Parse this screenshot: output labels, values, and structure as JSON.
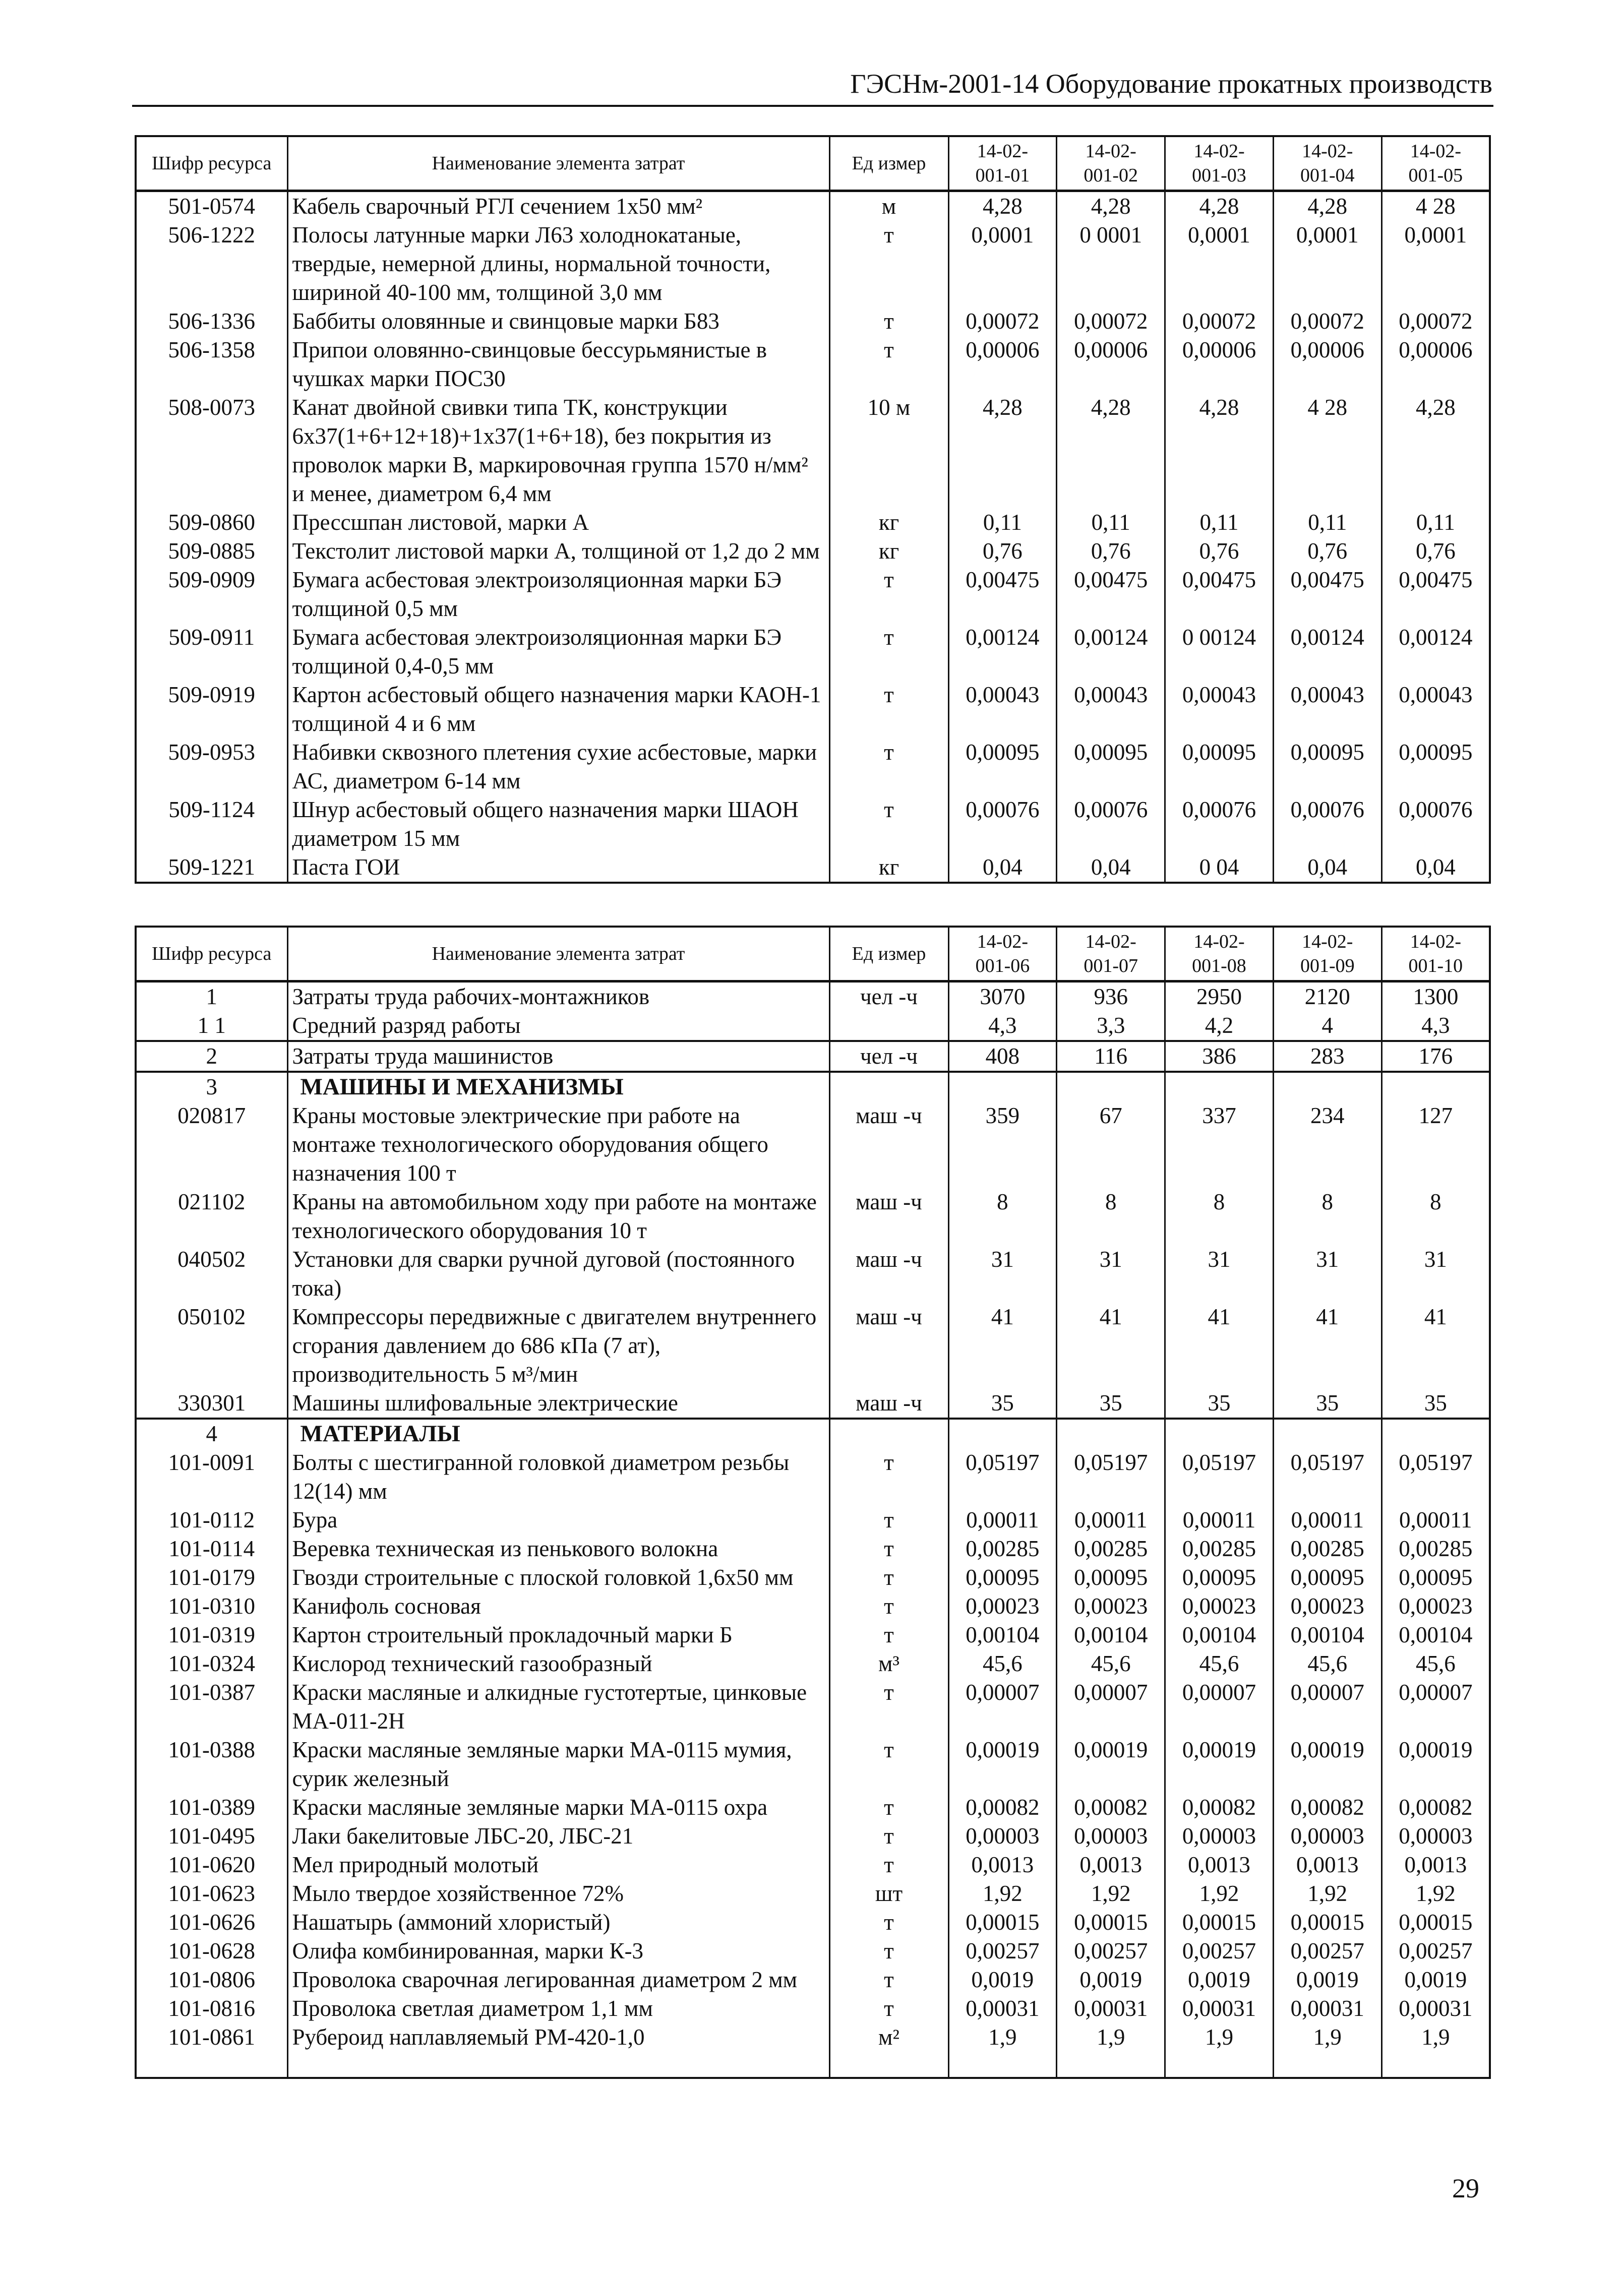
{
  "header": {
    "title": "ГЭСНм-2001-14 Оборудование прокатных производств"
  },
  "page_number": "29",
  "tables": [
    {
      "columns": [
        "Шифр ресурса",
        "Наименование элемента затрат",
        "Ед измер",
        "14-02-001-01",
        "14-02-001-02",
        "14-02-001-03",
        "14-02-001-04",
        "14-02-001-05"
      ],
      "rows": [
        {
          "code": "501-0574",
          "name": "Кабель сварочный РГЛ сечением 1х50 мм²",
          "unit": "м",
          "values": [
            "4,28",
            "4,28",
            "4,28",
            "4,28",
            "4 28"
          ]
        },
        {
          "code": "506-1222",
          "name": "Полосы латунные марки Л63 холоднокатаные, твердые, немерной длины, нормальной точности, шириной 40-100 мм, толщиной 3,0 мм",
          "unit": "т",
          "values": [
            "0,0001",
            "0 0001",
            "0,0001",
            "0,0001",
            "0,0001"
          ]
        },
        {
          "code": "506-1336",
          "name": "Баббиты оловянные и свинцовые марки Б83",
          "unit": "т",
          "values": [
            "0,00072",
            "0,00072",
            "0,00072",
            "0,00072",
            "0,00072"
          ]
        },
        {
          "code": "506-1358",
          "name": "Припои оловянно-свинцовые бессурьмянистые в чушках марки ПОС30",
          "unit": "т",
          "values": [
            "0,00006",
            "0,00006",
            "0,00006",
            "0,00006",
            "0,00006"
          ]
        },
        {
          "code": "508-0073",
          "name": "Канат двойной свивки типа ТК, конструкции 6х37(1+6+12+18)+1х37(1+6+18), без покрытия из проволок марки В, маркировочная группа 1570 н/мм² и менее, диаметром 6,4 мм",
          "unit": "10 м",
          "values": [
            "4,28",
            "4,28",
            "4,28",
            "4 28",
            "4,28"
          ]
        },
        {
          "code": "509-0860",
          "name": "Прессшпан листовой, марки А",
          "unit": "кг",
          "values": [
            "0,11",
            "0,11",
            "0,11",
            "0,11",
            "0,11"
          ]
        },
        {
          "code": "509-0885",
          "name": "Текстолит листовой марки А, толщиной от 1,2 до 2 мм",
          "unit": "кг",
          "values": [
            "0,76",
            "0,76",
            "0,76",
            "0,76",
            "0,76"
          ]
        },
        {
          "code": "509-0909",
          "name": "Бумага асбестовая электроизоляционная марки БЭ толщиной 0,5 мм",
          "unit": "т",
          "values": [
            "0,00475",
            "0,00475",
            "0,00475",
            "0,00475",
            "0,00475"
          ]
        },
        {
          "code": "509-0911",
          "name": "Бумага асбестовая электроизоляционная марки БЭ толщиной 0,4-0,5 мм",
          "unit": "т",
          "values": [
            "0,00124",
            "0,00124",
            "0 00124",
            "0,00124",
            "0,00124"
          ]
        },
        {
          "code": "509-0919",
          "name": "Картон асбестовый общего назначения марки КАОН-1 толщиной 4 и 6 мм",
          "unit": "т",
          "values": [
            "0,00043",
            "0,00043",
            "0,00043",
            "0,00043",
            "0,00043"
          ]
        },
        {
          "code": "509-0953",
          "name": "Набивки сквозного плетения сухие асбестовые, марки АС, диаметром 6-14 мм",
          "unit": "т",
          "values": [
            "0,00095",
            "0,00095",
            "0,00095",
            "0,00095",
            "0,00095"
          ]
        },
        {
          "code": "509-1124",
          "name": "Шнур асбестовый общего назначения марки ШАОН диаметром 15 мм",
          "unit": "т",
          "values": [
            "0,00076",
            "0,00076",
            "0,00076",
            "0,00076",
            "0,00076"
          ]
        },
        {
          "code": "509-1221",
          "name": "Паста ГОИ",
          "unit": "кг",
          "values": [
            "0,04",
            "0,04",
            "0 04",
            "0,04",
            "0,04"
          ]
        }
      ]
    },
    {
      "columns": [
        "Шифр ресурса",
        "Наименование элемента затрат",
        "Ед измер",
        "14-02-001-06",
        "14-02-001-07",
        "14-02-001-08",
        "14-02-001-09",
        "14-02-001-10"
      ],
      "rows": [
        {
          "code": "1",
          "name": "Затраты труда рабочих-монтажников",
          "unit": "чел -ч",
          "values": [
            "3070",
            "936",
            "2950",
            "2120",
            "1300"
          ]
        },
        {
          "code": "1 1",
          "name": "Средний разряд работы",
          "unit": "",
          "values": [
            "4,3",
            "3,3",
            "4,2",
            "4",
            "4,3"
          ],
          "sep": true
        },
        {
          "code": "2",
          "name": "Затраты труда машинистов",
          "unit": "чел -ч",
          "values": [
            "408",
            "116",
            "386",
            "283",
            "176"
          ],
          "sep": true
        },
        {
          "code": "3",
          "name": "МАШИНЫ И МЕХАНИЗМЫ",
          "unit": "",
          "values": [
            "",
            "",
            "",
            "",
            ""
          ],
          "bold": true
        },
        {
          "code": "020817",
          "name": "Краны мостовые электрические при работе на монтаже технологического оборудования общего назначения 100 т",
          "unit": "маш -ч",
          "values": [
            "359",
            "67",
            "337",
            "234",
            "127"
          ]
        },
        {
          "code": "021102",
          "name": "Краны на автомобильном ходу при работе на монтаже технологического оборудования 10 т",
          "unit": "маш -ч",
          "values": [
            "8",
            "8",
            "8",
            "8",
            "8"
          ]
        },
        {
          "code": "040502",
          "name": "Установки для сварки ручной дуговой (постоянного тока)",
          "unit": "маш -ч",
          "values": [
            "31",
            "31",
            "31",
            "31",
            "31"
          ]
        },
        {
          "code": "050102",
          "name": "Компрессоры передвижные с двигателем внутреннего сгорания давлением до 686 кПа (7 ат), производительность 5 м³/мин",
          "unit": "маш -ч",
          "values": [
            "41",
            "41",
            "41",
            "41",
            "41"
          ]
        },
        {
          "code": "330301",
          "name": "Машины шлифовальные электрические",
          "unit": "маш -ч",
          "values": [
            "35",
            "35",
            "35",
            "35",
            "35"
          ],
          "sep": true
        },
        {
          "code": "4",
          "name": "МАТЕРИАЛЫ",
          "unit": "",
          "values": [
            "",
            "",
            "",
            "",
            ""
          ],
          "bold": true
        },
        {
          "code": "101-0091",
          "name": "Болты с шестигранной головкой диаметром резьбы 12(14) мм",
          "unit": "т",
          "values": [
            "0,05197",
            "0,05197",
            "0,05197",
            "0,05197",
            "0,05197"
          ]
        },
        {
          "code": "101-0112",
          "name": "Бура",
          "unit": "т",
          "values": [
            "0,00011",
            "0,00011",
            "0,00011",
            "0,00011",
            "0,00011"
          ]
        },
        {
          "code": "101-0114",
          "name": "Веревка техническая из пенькового волокна",
          "unit": "т",
          "values": [
            "0,00285",
            "0,00285",
            "0,00285",
            "0,00285",
            "0,00285"
          ]
        },
        {
          "code": "101-0179",
          "name": "Гвозди строительные с плоской головкой 1,6х50 мм",
          "unit": "т",
          "values": [
            "0,00095",
            "0,00095",
            "0,00095",
            "0,00095",
            "0,00095"
          ]
        },
        {
          "code": "101-0310",
          "name": "Канифоль сосновая",
          "unit": "т",
          "values": [
            "0,00023",
            "0,00023",
            "0,00023",
            "0,00023",
            "0,00023"
          ]
        },
        {
          "code": "101-0319",
          "name": "Картон строительный прокладочный марки Б",
          "unit": "т",
          "values": [
            "0,00104",
            "0,00104",
            "0,00104",
            "0,00104",
            "0,00104"
          ]
        },
        {
          "code": "101-0324",
          "name": "Кислород технический газообразный",
          "unit": "м³",
          "values": [
            "45,6",
            "45,6",
            "45,6",
            "45,6",
            "45,6"
          ]
        },
        {
          "code": "101-0387",
          "name": "Краски масляные и алкидные густотертые, цинковые МА-011-2Н",
          "unit": "т",
          "values": [
            "0,00007",
            "0,00007",
            "0,00007",
            "0,00007",
            "0,00007"
          ]
        },
        {
          "code": "101-0388",
          "name": "Краски масляные земляные марки МА-0115 мумия, сурик железный",
          "unit": "т",
          "values": [
            "0,00019",
            "0,00019",
            "0,00019",
            "0,00019",
            "0,00019"
          ]
        },
        {
          "code": "101-0389",
          "name": "Краски масляные земляные марки МА-0115 охра",
          "unit": "т",
          "values": [
            "0,00082",
            "0,00082",
            "0,00082",
            "0,00082",
            "0,00082"
          ]
        },
        {
          "code": "101-0495",
          "name": "Лаки бакелитовые ЛБС-20, ЛБС-21",
          "unit": "т",
          "values": [
            "0,00003",
            "0,00003",
            "0,00003",
            "0,00003",
            "0,00003"
          ]
        },
        {
          "code": "101-0620",
          "name": "Мел природный молотый",
          "unit": "т",
          "values": [
            "0,0013",
            "0,0013",
            "0,0013",
            "0,0013",
            "0,0013"
          ]
        },
        {
          "code": "101-0623",
          "name": "Мыло твердое хозяйственное 72%",
          "unit": "шт",
          "values": [
            "1,92",
            "1,92",
            "1,92",
            "1,92",
            "1,92"
          ]
        },
        {
          "code": "101-0626",
          "name": "Нашатырь (аммоний хлористый)",
          "unit": "т",
          "values": [
            "0,00015",
            "0,00015",
            "0,00015",
            "0,00015",
            "0,00015"
          ]
        },
        {
          "code": "101-0628",
          "name": "Олифа комбинированная, марки К-3",
          "unit": "т",
          "values": [
            "0,00257",
            "0,00257",
            "0,00257",
            "0,00257",
            "0,00257"
          ]
        },
        {
          "code": "101-0806",
          "name": "Проволока сварочная легированная диаметром 2 мм",
          "unit": "т",
          "values": [
            "0,0019",
            "0,0019",
            "0,0019",
            "0,0019",
            "0,0019"
          ]
        },
        {
          "code": "101-0816",
          "name": "Проволока светлая диаметром 1,1 мм",
          "unit": "т",
          "values": [
            "0,00031",
            "0,00031",
            "0,00031",
            "0,00031",
            "0,00031"
          ]
        },
        {
          "code": "101-0861",
          "name": "Рубероид наплавляемый РМ-420-1,0",
          "unit": "м²",
          "values": [
            "1,9",
            "1,9",
            "1,9",
            "1,9",
            "1,9"
          ]
        }
      ]
    }
  ]
}
